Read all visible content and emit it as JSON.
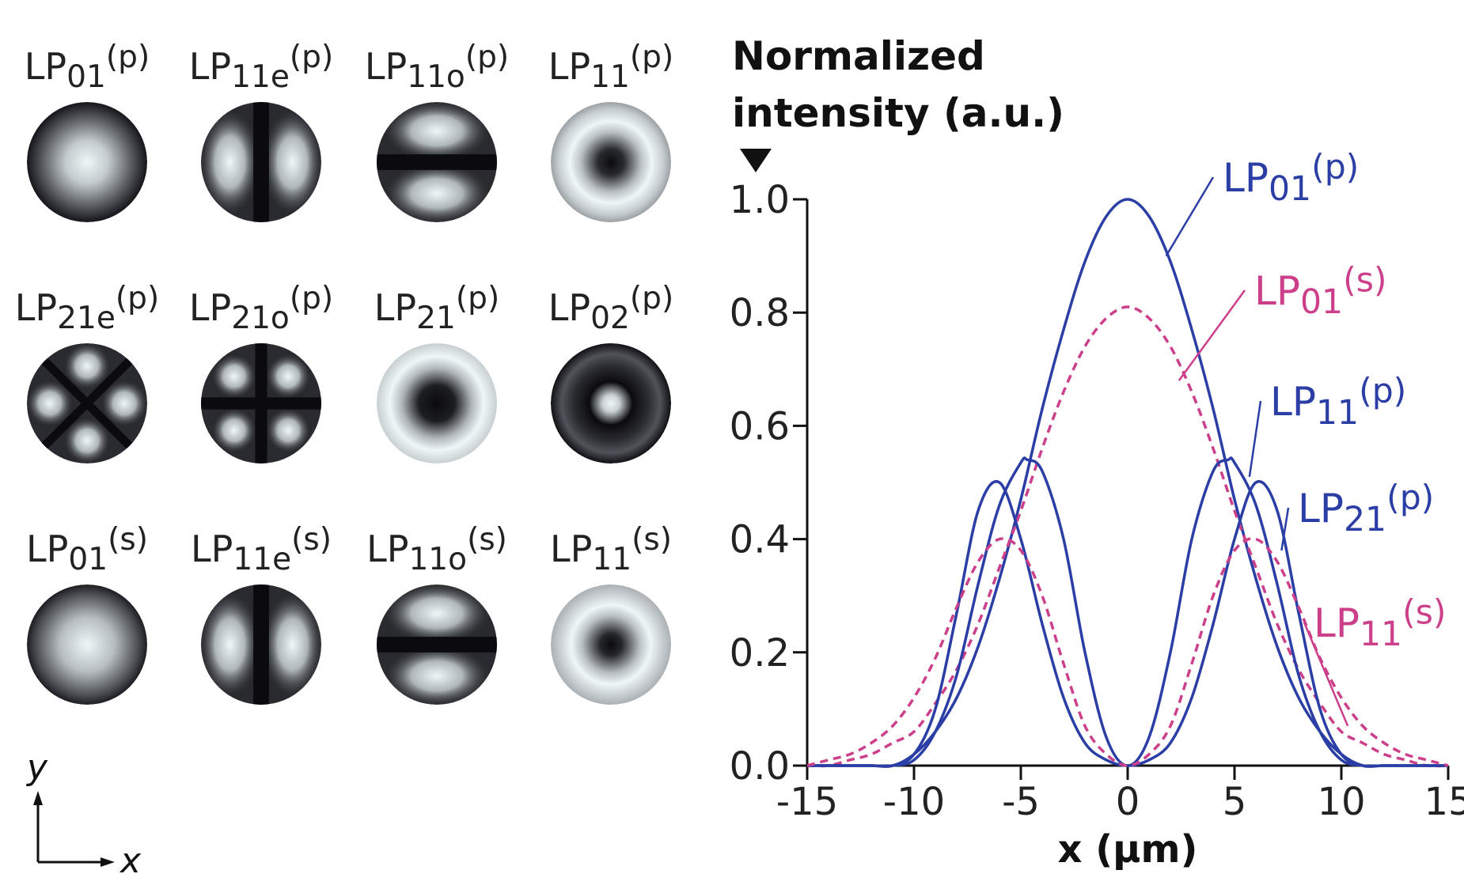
{
  "colors": {
    "blue": "#2b3ea6",
    "magenta": "#cc3f8a",
    "axis": "#111111",
    "mode_bright": "#eef6f8",
    "mode_dark": "#0b0b0f"
  },
  "mode_rows": [
    [
      {
        "base": "LP",
        "sub": "01",
        "sup": "(p)",
        "pattern": "lp01"
      },
      {
        "base": "LP",
        "sub": "11e",
        "sup": "(p)",
        "pattern": "lp11e"
      },
      {
        "base": "LP",
        "sub": "11o",
        "sup": "(p)",
        "pattern": "lp11o"
      },
      {
        "base": "LP",
        "sub": "11",
        "sup": "(p)",
        "pattern": "lp11"
      }
    ],
    [
      {
        "base": "LP",
        "sub": "21e",
        "sup": "(p)",
        "pattern": "lp21e"
      },
      {
        "base": "LP",
        "sub": "21o",
        "sup": "(p)",
        "pattern": "lp21o"
      },
      {
        "base": "LP",
        "sub": "21",
        "sup": "(p)",
        "pattern": "lp21"
      },
      {
        "base": "LP",
        "sub": "02",
        "sup": "(p)",
        "pattern": "lp02"
      }
    ],
    [
      {
        "base": "LP",
        "sub": "01",
        "sup": "(s)",
        "pattern": "lp01s"
      },
      {
        "base": "LP",
        "sub": "11e",
        "sup": "(s)",
        "pattern": "lp11e"
      },
      {
        "base": "LP",
        "sub": "11o",
        "sup": "(s)",
        "pattern": "lp11o"
      },
      {
        "base": "LP",
        "sub": "11",
        "sup": "(s)",
        "pattern": "lp11s"
      }
    ]
  ],
  "axes_indicator": {
    "x": "x",
    "y": "y"
  },
  "chart_data": {
    "type": "line",
    "ylabel_lines": [
      "Normalized",
      "intensity (a.u.)"
    ],
    "xlabel": "x (μm)",
    "xlim": [
      -15,
      15
    ],
    "ylim": [
      0,
      1
    ],
    "xticks": [
      -15,
      -10,
      -5,
      0,
      5,
      10,
      15
    ],
    "xtick_labels": [
      "-15",
      "-10",
      "-5",
      "0",
      "5",
      "10",
      "15"
    ],
    "yticks": [
      0,
      0.2,
      0.4,
      0.6,
      0.8,
      1.0
    ],
    "ytick_labels": [
      "0.0",
      "0.2",
      "0.4",
      "0.6",
      "0.8",
      "1.0"
    ],
    "grid": false,
    "series": [
      {
        "name": "LP01(p)",
        "base": "LP",
        "sub": "01",
        "sup": "(p)",
        "color": "#2b3ea6",
        "style": "solid",
        "x": [
          -15,
          -14,
          -13,
          -12,
          -11,
          -10,
          -9,
          -8,
          -7,
          -6,
          -5,
          -4,
          -3,
          -2,
          -1,
          0,
          1,
          2,
          3,
          4,
          5,
          6,
          7,
          8,
          9,
          10,
          11,
          12,
          13,
          14,
          15
        ],
        "y": [
          0,
          0,
          0,
          0,
          0,
          0.02,
          0.06,
          0.12,
          0.21,
          0.33,
          0.47,
          0.63,
          0.77,
          0.89,
          0.97,
          1.0,
          0.97,
          0.89,
          0.77,
          0.63,
          0.47,
          0.33,
          0.21,
          0.12,
          0.06,
          0.02,
          0,
          0,
          0,
          0,
          0
        ]
      },
      {
        "name": "LP01(s)",
        "base": "LP",
        "sub": "01",
        "sup": "(s)",
        "color": "#cc3f8a",
        "style": "dashed",
        "x": [
          -15,
          -14,
          -13,
          -12,
          -11,
          -10,
          -9,
          -8,
          -7,
          -6,
          -5,
          -4,
          -3,
          -2,
          -1,
          0,
          1,
          2,
          3,
          4,
          5,
          6,
          7,
          8,
          9,
          10,
          11,
          12,
          13,
          14,
          15
        ],
        "y": [
          0,
          0,
          0.01,
          0.02,
          0.04,
          0.06,
          0.11,
          0.17,
          0.25,
          0.35,
          0.45,
          0.56,
          0.66,
          0.74,
          0.79,
          0.81,
          0.79,
          0.74,
          0.66,
          0.56,
          0.45,
          0.35,
          0.25,
          0.17,
          0.11,
          0.06,
          0.04,
          0.02,
          0.01,
          0,
          0
        ]
      },
      {
        "name": "LP11(p)",
        "base": "LP",
        "sub": "11",
        "sup": "(p)",
        "color": "#2b3ea6",
        "style": "solid",
        "x": [
          -15,
          -14,
          -13,
          -12,
          -11,
          -10,
          -9,
          -8,
          -7,
          -6,
          -5,
          -4.7,
          -4,
          -3,
          -2,
          -1,
          0,
          1,
          2,
          3,
          4,
          4.7,
          5,
          6,
          7,
          8,
          9,
          10,
          11,
          12,
          13,
          14,
          15
        ],
        "y": [
          0,
          0,
          0,
          0,
          0,
          0.01,
          0.06,
          0.16,
          0.32,
          0.46,
          0.535,
          0.54,
          0.52,
          0.4,
          0.2,
          0.05,
          0,
          0.05,
          0.2,
          0.4,
          0.52,
          0.54,
          0.535,
          0.46,
          0.32,
          0.16,
          0.06,
          0.01,
          0,
          0,
          0,
          0,
          0
        ]
      },
      {
        "name": "LP21(p)",
        "base": "LP",
        "sub": "21",
        "sup": "(p)",
        "color": "#2b3ea6",
        "style": "solid",
        "x": [
          -15,
          -14,
          -13,
          -12,
          -11,
          -10,
          -9,
          -8,
          -7,
          -6,
          -5,
          -4,
          -3,
          -2,
          -1,
          0,
          1,
          2,
          3,
          4,
          5,
          6,
          7,
          8,
          9,
          10,
          11,
          12,
          13,
          14,
          15
        ],
        "y": [
          0,
          0,
          0,
          0,
          0,
          0.02,
          0.1,
          0.27,
          0.45,
          0.5,
          0.4,
          0.25,
          0.12,
          0.04,
          0.01,
          0,
          0.01,
          0.04,
          0.12,
          0.25,
          0.4,
          0.5,
          0.45,
          0.27,
          0.1,
          0.02,
          0,
          0,
          0,
          0,
          0
        ]
      },
      {
        "name": "LP11(s)",
        "base": "LP",
        "sub": "11",
        "sup": "(s)",
        "color": "#cc3f8a",
        "style": "dashed",
        "x": [
          -15,
          -14,
          -13,
          -12,
          -11,
          -10,
          -9,
          -8,
          -7,
          -6,
          -5,
          -4,
          -3,
          -2,
          -1,
          0,
          1,
          2,
          3,
          4,
          5,
          6,
          7,
          8,
          9,
          10,
          11,
          12,
          13,
          14,
          15
        ],
        "y": [
          0,
          0.01,
          0.02,
          0.04,
          0.07,
          0.12,
          0.19,
          0.28,
          0.36,
          0.4,
          0.38,
          0.3,
          0.18,
          0.07,
          0.02,
          0,
          0.02,
          0.07,
          0.18,
          0.3,
          0.38,
          0.4,
          0.36,
          0.28,
          0.19,
          0.12,
          0.07,
          0.04,
          0.02,
          0.01,
          0
        ]
      }
    ],
    "annotations": [
      {
        "series": "LP01(p)",
        "base": "LP",
        "sub": "01",
        "sup": "(p)",
        "color": "#2b3ea6",
        "point": [
          1.8,
          0.9
        ]
      },
      {
        "series": "LP01(s)",
        "base": "LP",
        "sub": "01",
        "sup": "(s)",
        "color": "#cc3f8a",
        "point": [
          2.4,
          0.68
        ]
      },
      {
        "series": "LP11(p)",
        "base": "LP",
        "sub": "11",
        "sup": "(p)",
        "color": "#2b3ea6",
        "point": [
          5.7,
          0.51
        ]
      },
      {
        "series": "LP21(p)",
        "base": "LP",
        "sub": "21",
        "sup": "(p)",
        "color": "#2b3ea6",
        "point": [
          7.2,
          0.38
        ]
      },
      {
        "series": "LP11(s)",
        "base": "LP",
        "sub": "11",
        "sup": "(s)",
        "color": "#cc3f8a",
        "point": [
          10.3,
          0.07
        ]
      }
    ]
  }
}
